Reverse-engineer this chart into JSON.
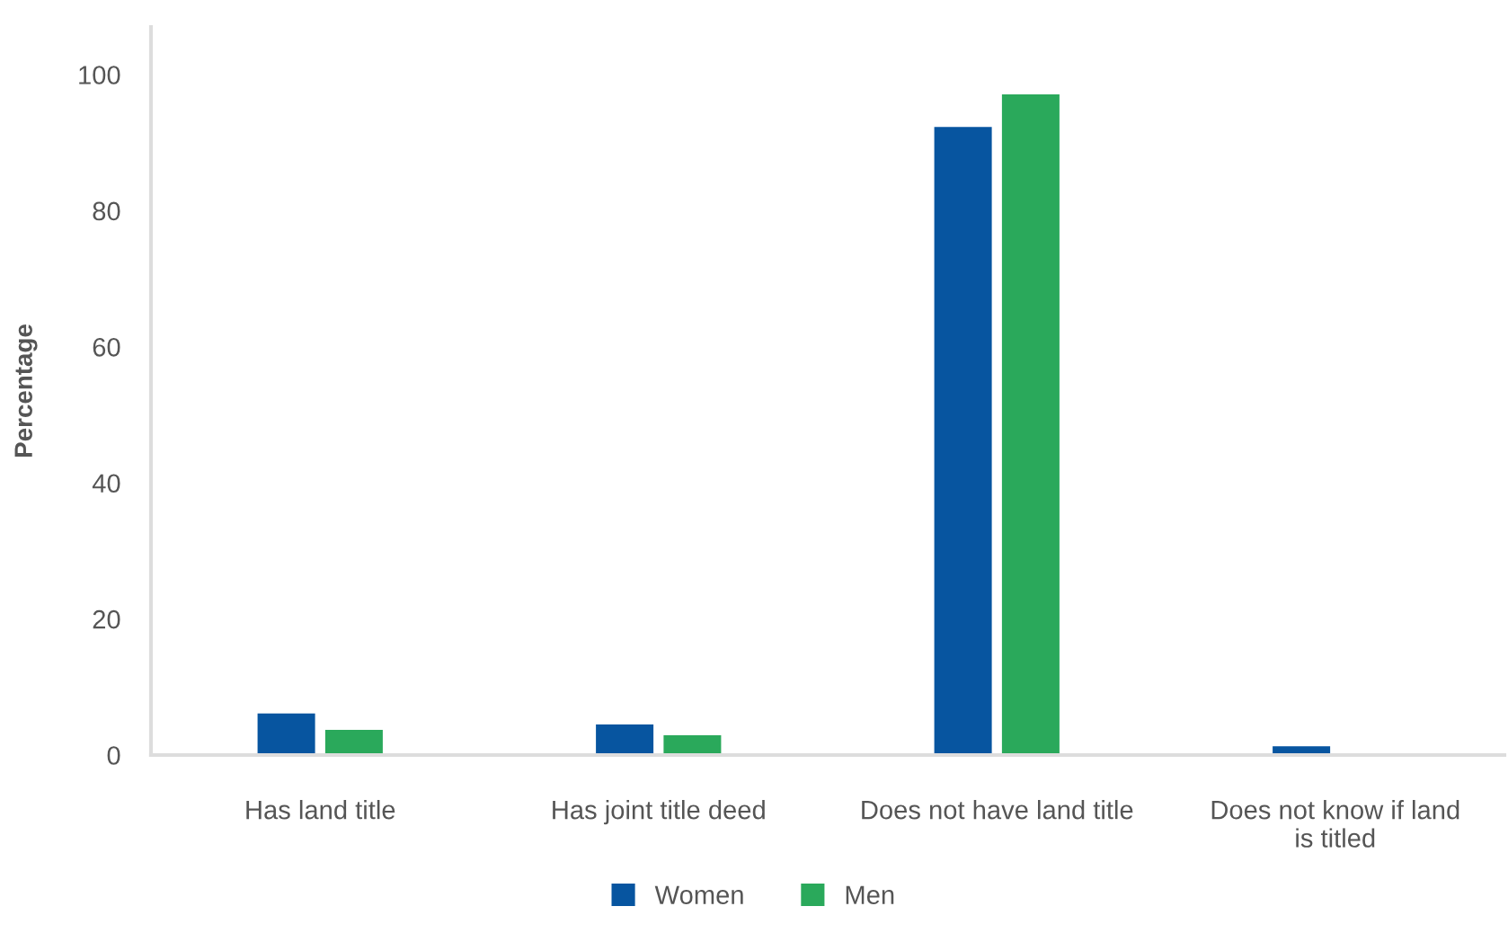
{
  "chart_data": {
    "type": "bar",
    "ylabel": "Percentage",
    "categories": [
      "Has land title",
      "Has joint title deed",
      "Does not have land title",
      "Does not know if land\nis titled"
    ],
    "series": [
      {
        "name": "Women",
        "color": "#0755a0",
        "values": [
          6.1,
          4.5,
          92.3,
          1.3
        ]
      },
      {
        "name": "Men",
        "color": "#2aa95b",
        "values": [
          3.7,
          2.9,
          97.1,
          0
        ]
      }
    ],
    "ylim": [
      0,
      107
    ],
    "yticks": [
      0,
      20,
      40,
      60,
      80,
      100
    ],
    "grid": false,
    "legend": "bottom"
  }
}
